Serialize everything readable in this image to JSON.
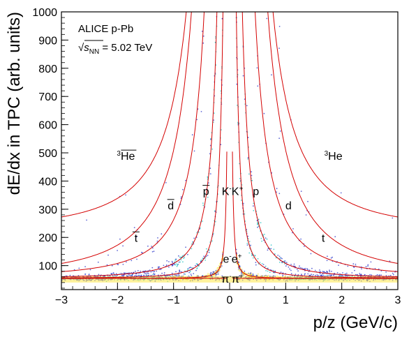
{
  "chart_data": {
    "type": "heatmap",
    "title": "",
    "xlabel": "p/z (GeV/c)",
    "ylabel": "dE/dx in TPC (arb. units)",
    "xlim": [
      -3,
      3
    ],
    "ylim": [
      15,
      1000
    ],
    "xticks": [
      -3,
      -2,
      -1,
      0,
      1,
      2,
      3
    ],
    "yticks": [
      100,
      200,
      300,
      400,
      500,
      600,
      700,
      800,
      900,
      1000
    ],
    "legend": {
      "experiment": "ALICE p-Pb",
      "energy_symbol": "√s",
      "energy_subscript": "NN",
      "energy_value": " = 5.02 TeV"
    },
    "colors": {
      "expected_curve": "#d40000",
      "density_low": "#2b35c8",
      "density_mid": "#1fc0c0",
      "density_high": "#ffe84a"
    },
    "bands": [
      {
        "species": "e",
        "mass": 0.000511,
        "charge": 1,
        "sides": [
          -1,
          1
        ]
      },
      {
        "species": "π",
        "mass": 0.1396,
        "charge": 1,
        "sides": [
          -1,
          1
        ]
      },
      {
        "species": "K",
        "mass": 0.4937,
        "charge": 1,
        "sides": [
          -1,
          1
        ]
      },
      {
        "species": "p",
        "mass": 0.9383,
        "charge": 1,
        "sides": [
          -1,
          1
        ]
      },
      {
        "species": "d",
        "mass": 1.8756,
        "charge": 1,
        "sides": [
          -1,
          1
        ]
      },
      {
        "species": "t",
        "mass": 2.8089,
        "charge": 1,
        "sides": [
          -1,
          1
        ]
      },
      {
        "species": "3He",
        "mass": 2.8084,
        "charge": 2,
        "sides": [
          -1,
          1
        ]
      }
    ],
    "annotations": [
      {
        "id": "he3-bar",
        "pre": "3",
        "text": "He",
        "overline": true,
        "x": -1.85,
        "y": 475
      },
      {
        "id": "he3",
        "pre": "3",
        "text": "He",
        "overline": false,
        "x": 1.85,
        "y": 475
      },
      {
        "id": "dbar",
        "pre": "",
        "text": "d",
        "overline": true,
        "x": -1.05,
        "y": 300
      },
      {
        "id": "d",
        "pre": "",
        "text": "d",
        "overline": false,
        "x": 1.05,
        "y": 300
      },
      {
        "id": "tbar",
        "pre": "",
        "text": "t",
        "overline": true,
        "x": -1.67,
        "y": 185
      },
      {
        "id": "t",
        "pre": "",
        "text": "t",
        "overline": false,
        "x": 1.67,
        "y": 185
      },
      {
        "id": "pbar",
        "pre": "",
        "text": "p",
        "overline": true,
        "x": -0.42,
        "y": 350
      },
      {
        "id": "p",
        "pre": "",
        "text": "p",
        "overline": false,
        "x": 0.47,
        "y": 350
      },
      {
        "id": "kaons",
        "pre": "",
        "text": "K",
        "sup": "-",
        "text2": "K",
        "sup2": "+",
        "overline": false,
        "x": 0.05,
        "y": 350
      },
      {
        "id": "electrons",
        "pre": "",
        "text": "e",
        "sup": "-",
        "text2": "e",
        "sup2": "+",
        "overline": false,
        "x": 0.05,
        "y": 110
      },
      {
        "id": "pions",
        "pre": "",
        "text": "π",
        "sup": "-",
        "text2": "π",
        "sup2": "+",
        "overline": false,
        "x": 0.05,
        "y": 40
      }
    ]
  }
}
